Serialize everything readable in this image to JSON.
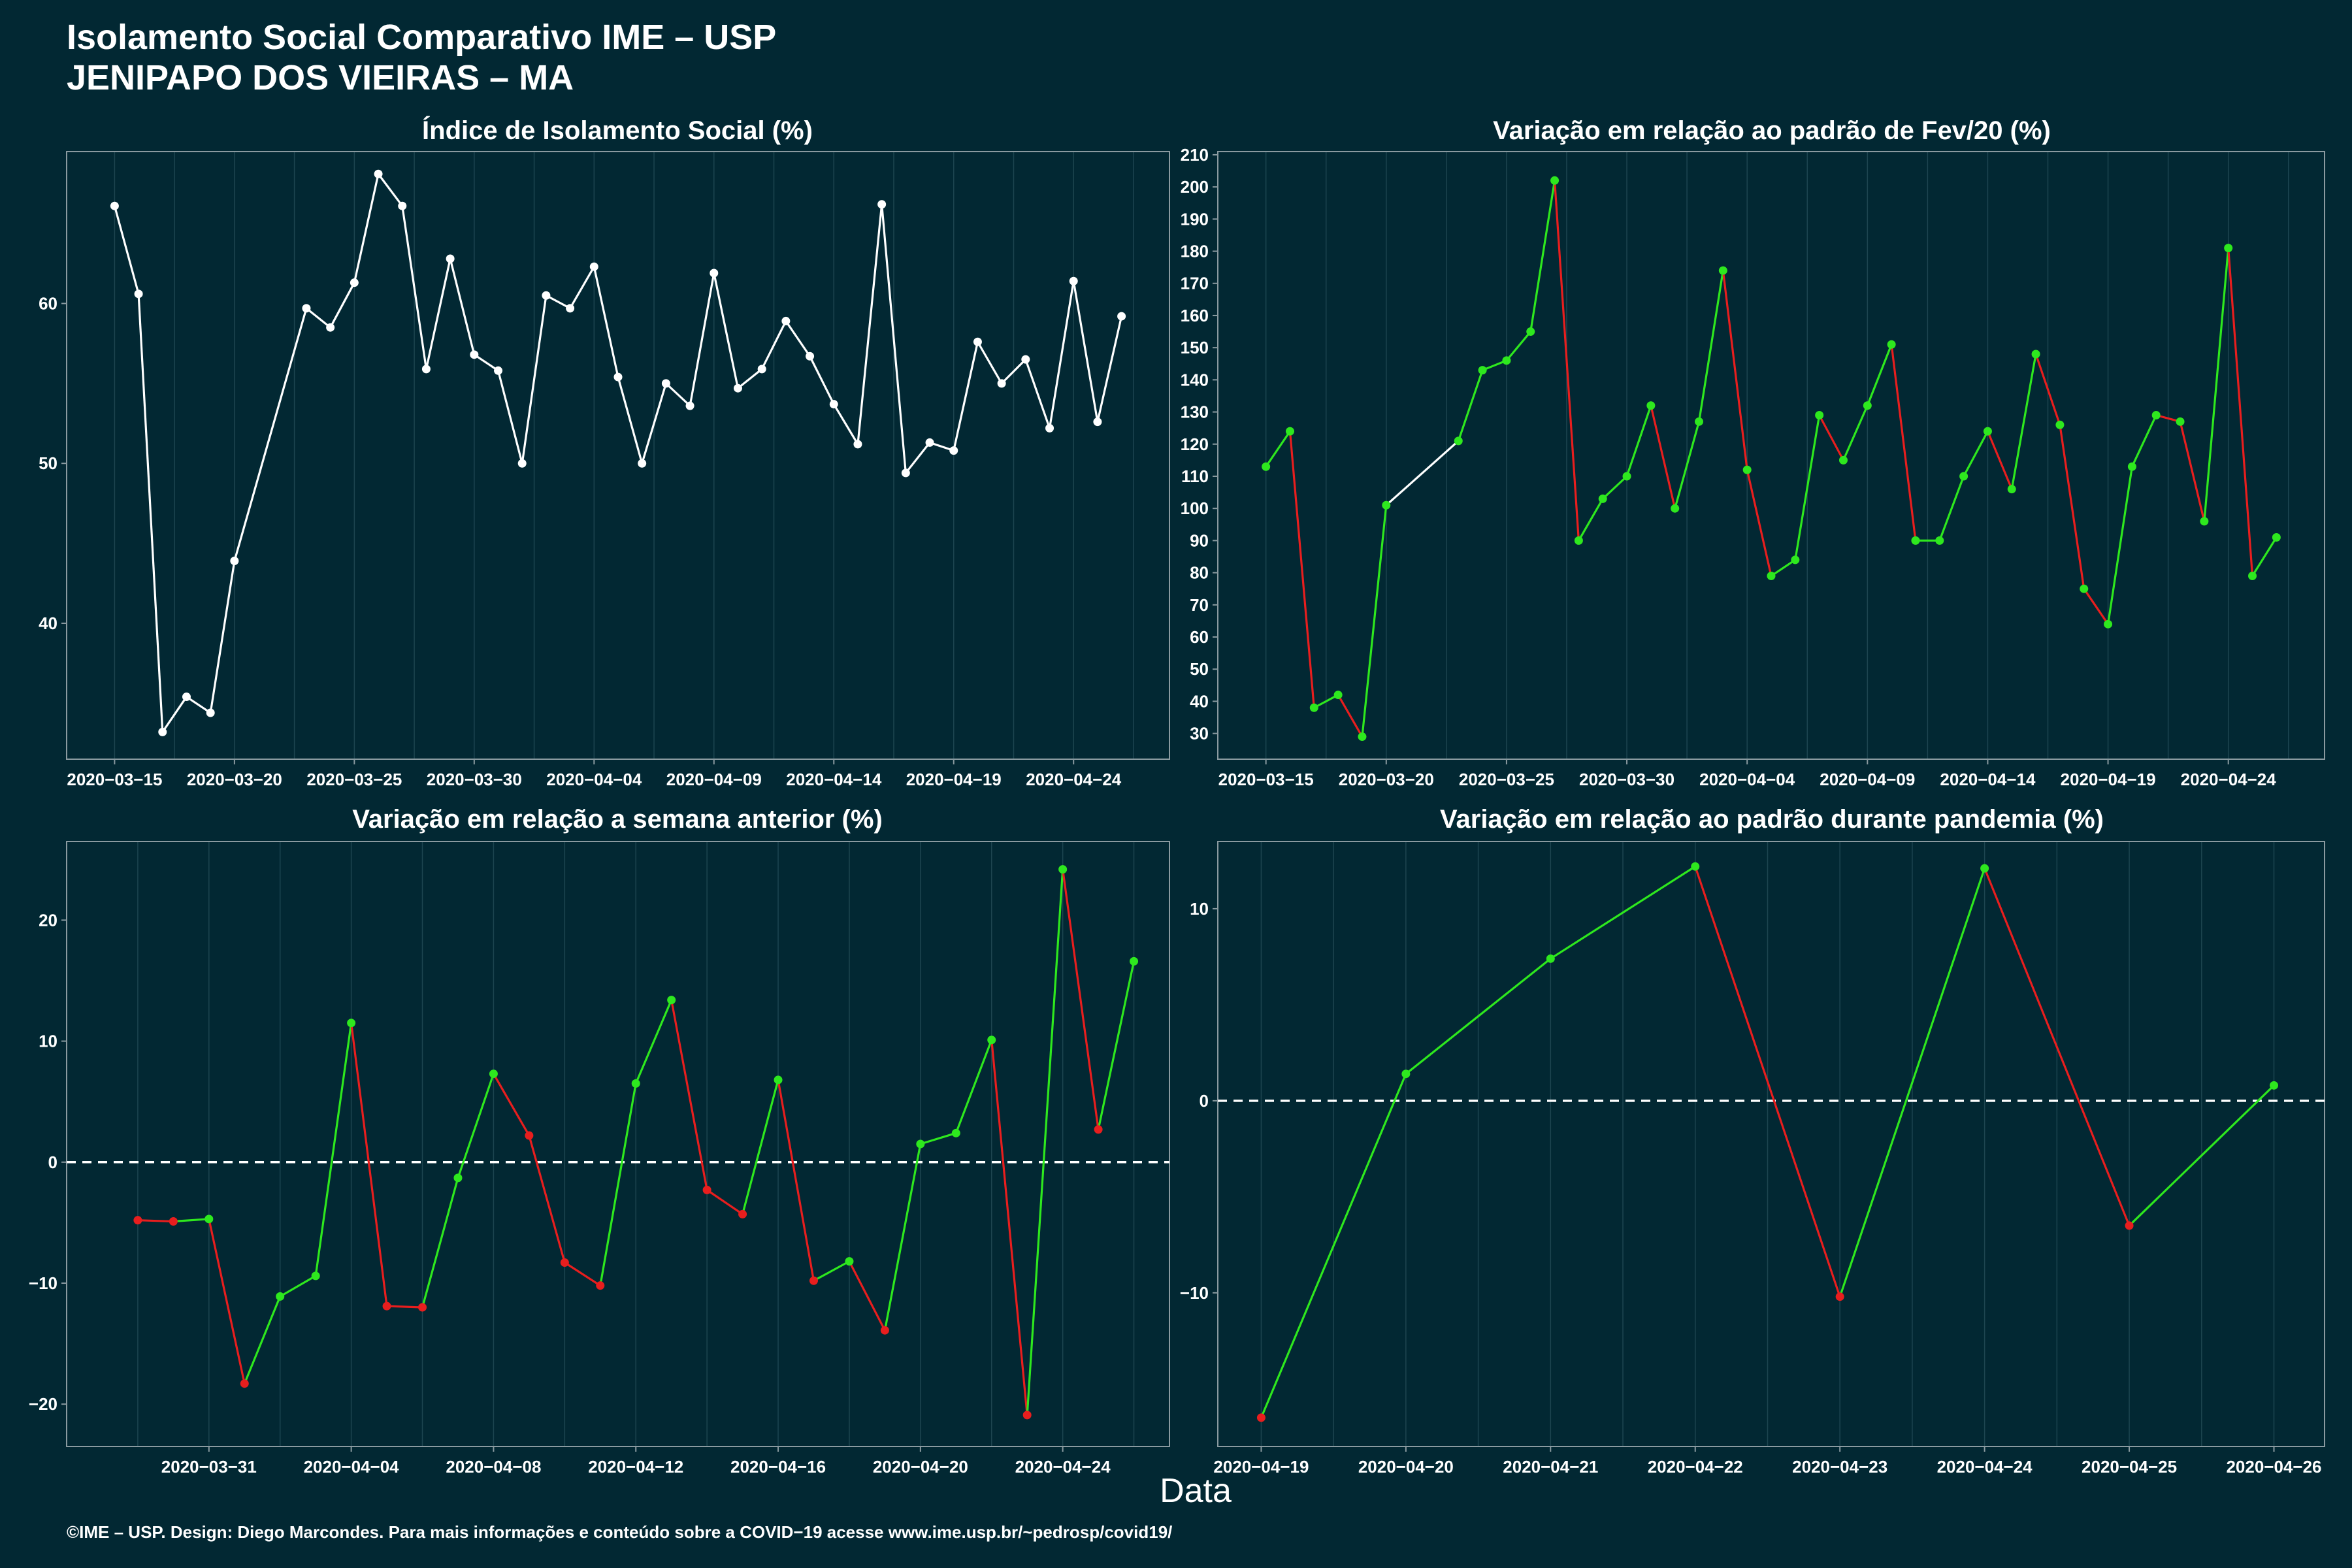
{
  "title": {
    "line1": "Isolamento Social Comparativo IME – USP",
    "line2": "JENIPAPO DOS VIEIRAS – MA"
  },
  "x_axis_title": "Data",
  "footer": "©IME – USP. Design: Diego Marcondes. Para mais informações e conteúdo sobre a COVID−19 acesse www.ime.usp.br/~pedrosp/covid19/",
  "colors": {
    "background": "#022833",
    "white": "#ffffff",
    "increase": "#2ee81e",
    "decrease": "#e81e1e",
    "grid": "#1d4550",
    "frame": "#8a9aa0"
  },
  "chart_data": [
    {
      "type": "line",
      "title": "Índice de Isolamento Social (%)",
      "x_type": "date",
      "xlim": [
        "2020-03-13",
        "2020-04-28"
      ],
      "ylim": [
        31.5,
        69.5
      ],
      "yticks": [
        40,
        50,
        60
      ],
      "xticks": [
        "2020-03-15",
        "2020-03-20",
        "2020-03-25",
        "2020-03-30",
        "2020-04-04",
        "2020-04-09",
        "2020-04-14",
        "2020-04-19",
        "2020-04-24"
      ],
      "xtick_labels": [
        "2020−03−15",
        "2020−03−20",
        "2020−03−25",
        "2020−03−30",
        "2020−04−04",
        "2020−04−09",
        "2020−04−14",
        "2020−04−19",
        "2020−04−24"
      ],
      "color_mode": "white",
      "series": [
        {
          "x": [
            "2020-03-15",
            "2020-03-16",
            "2020-03-17",
            "2020-03-18",
            "2020-03-19",
            "2020-03-20",
            "2020-03-23",
            "2020-03-24",
            "2020-03-25",
            "2020-03-26",
            "2020-03-27",
            "2020-03-28",
            "2020-03-29",
            "2020-03-30",
            "2020-03-31",
            "2020-04-01",
            "2020-04-02",
            "2020-04-03",
            "2020-04-04",
            "2020-04-05",
            "2020-04-06",
            "2020-04-07",
            "2020-04-08",
            "2020-04-09",
            "2020-04-10",
            "2020-04-11",
            "2020-04-12",
            "2020-04-13",
            "2020-04-14",
            "2020-04-15",
            "2020-04-16",
            "2020-04-17",
            "2020-04-18",
            "2020-04-19",
            "2020-04-20",
            "2020-04-21",
            "2020-04-22",
            "2020-04-23",
            "2020-04-24",
            "2020-04-25",
            "2020-04-26"
          ],
          "y": [
            66.1,
            60.6,
            33.2,
            35.4,
            34.4,
            43.9,
            59.7,
            58.5,
            61.3,
            68.1,
            66.1,
            55.9,
            62.8,
            56.8,
            55.8,
            50.0,
            60.5,
            59.7,
            62.3,
            55.4,
            50.0,
            55.0,
            53.6,
            61.9,
            54.7,
            55.9,
            58.9,
            56.7,
            53.7,
            51.2,
            66.2,
            49.4,
            51.3,
            50.8,
            57.6,
            55.0,
            56.5,
            52.2,
            61.4,
            52.6,
            59.2
          ]
        }
      ]
    },
    {
      "type": "line",
      "title": "Variação em relação ao padrão de Fev/20 (%)",
      "x_type": "date",
      "xlim": [
        "2020-03-13",
        "2020-04-28"
      ],
      "ylim": [
        22,
        211
      ],
      "yticks": [
        30,
        40,
        50,
        60,
        70,
        80,
        90,
        100,
        110,
        120,
        130,
        140,
        150,
        160,
        170,
        180,
        190,
        200,
        210
      ],
      "xticks": [
        "2020-03-15",
        "2020-03-20",
        "2020-03-25",
        "2020-03-30",
        "2020-04-04",
        "2020-04-09",
        "2020-04-14",
        "2020-04-19",
        "2020-04-24"
      ],
      "xtick_labels": [
        "2020−03−15",
        "2020−03−20",
        "2020−03−25",
        "2020−03−30",
        "2020−04−04",
        "2020−04−09",
        "2020−04−14",
        "2020−04−19",
        "2020−04−24"
      ],
      "color_mode": "change",
      "series": [
        {
          "x": [
            "2020-03-15",
            "2020-03-16",
            "2020-03-17",
            "2020-03-18",
            "2020-03-19",
            "2020-03-20",
            "2020-03-23",
            "2020-03-24",
            "2020-03-25",
            "2020-03-26",
            "2020-03-27",
            "2020-03-28",
            "2020-03-29",
            "2020-03-30",
            "2020-03-31",
            "2020-04-01",
            "2020-04-02",
            "2020-04-03",
            "2020-04-04",
            "2020-04-05",
            "2020-04-06",
            "2020-04-07",
            "2020-04-08",
            "2020-04-09",
            "2020-04-10",
            "2020-04-11",
            "2020-04-12",
            "2020-04-13",
            "2020-04-14",
            "2020-04-15",
            "2020-04-16",
            "2020-04-17",
            "2020-04-18",
            "2020-04-19",
            "2020-04-20",
            "2020-04-21",
            "2020-04-22",
            "2020-04-23",
            "2020-04-24",
            "2020-04-25",
            "2020-04-26"
          ],
          "y": [
            113,
            124,
            38,
            42,
            29,
            101,
            121,
            143,
            146,
            155,
            202,
            90,
            103,
            110,
            132,
            100,
            127,
            174,
            112,
            79,
            84,
            129,
            115,
            132,
            151,
            90,
            90,
            110,
            124,
            106,
            148,
            126,
            75,
            64,
            113,
            129,
            127,
            96,
            181,
            79,
            91
          ]
        }
      ]
    },
    {
      "type": "line",
      "title": "Variação em relação a semana anterior (%)",
      "x_type": "date",
      "xlim": [
        "2020-03-27",
        "2020-04-27"
      ],
      "ylim": [
        -23.5,
        26.5
      ],
      "yticks": [
        -20,
        -10,
        0,
        10,
        20
      ],
      "reference_line": 0,
      "xticks": [
        "2020-03-31",
        "2020-04-04",
        "2020-04-08",
        "2020-04-12",
        "2020-04-16",
        "2020-04-20",
        "2020-04-24"
      ],
      "xtick_labels": [
        "2020−03−31",
        "2020−04−04",
        "2020−04−08",
        "2020−04−12",
        "2020−04−16",
        "2020−04−20",
        "2020−04−24"
      ],
      "color_mode": "change",
      "series": [
        {
          "x": [
            "2020-03-29",
            "2020-03-30",
            "2020-03-31",
            "2020-04-01",
            "2020-04-02",
            "2020-04-03",
            "2020-04-04",
            "2020-04-05",
            "2020-04-06",
            "2020-04-07",
            "2020-04-08",
            "2020-04-09",
            "2020-04-10",
            "2020-04-11",
            "2020-04-12",
            "2020-04-13",
            "2020-04-14",
            "2020-04-15",
            "2020-04-16",
            "2020-04-17",
            "2020-04-18",
            "2020-04-19",
            "2020-04-20",
            "2020-04-21",
            "2020-04-22",
            "2020-04-23",
            "2020-04-24",
            "2020-04-25",
            "2020-04-26"
          ],
          "y": [
            -4.8,
            -4.9,
            -4.7,
            -18.3,
            -11.1,
            -9.4,
            11.5,
            -11.9,
            -12.0,
            -1.3,
            7.3,
            2.2,
            -8.3,
            -10.2,
            6.5,
            13.4,
            -2.3,
            -4.3,
            6.8,
            -9.8,
            -8.2,
            -13.9,
            1.5,
            2.4,
            10.1,
            -20.9,
            24.2,
            2.7,
            16.6
          ]
        }
      ]
    },
    {
      "type": "line",
      "title": "Variação em relação ao padrão durante pandemia (%)",
      "x_type": "date",
      "xlim": [
        "2020-04-18.7",
        "2020-04-26.35"
      ],
      "ylim": [
        -18,
        13.5
      ],
      "yticks": [
        -10,
        0,
        10
      ],
      "reference_line": 0,
      "xticks": [
        "2020-04-19",
        "2020-04-20",
        "2020-04-21",
        "2020-04-22",
        "2020-04-23",
        "2020-04-24",
        "2020-04-25",
        "2020-04-26"
      ],
      "xtick_labels": [
        "2020−04−19",
        "2020−04−20",
        "2020−04−21",
        "2020−04−22",
        "2020−04−23",
        "2020−04−24",
        "2020−04−25",
        "2020−04−26"
      ],
      "color_mode": "change",
      "series": [
        {
          "x": [
            "2020-04-19",
            "2020-04-20",
            "2020-04-21",
            "2020-04-22",
            "2020-04-23",
            "2020-04-24",
            "2020-04-25",
            "2020-04-26"
          ],
          "y": [
            -16.5,
            1.4,
            7.4,
            12.2,
            -10.2,
            12.1,
            -6.5,
            0.8
          ]
        }
      ]
    }
  ]
}
